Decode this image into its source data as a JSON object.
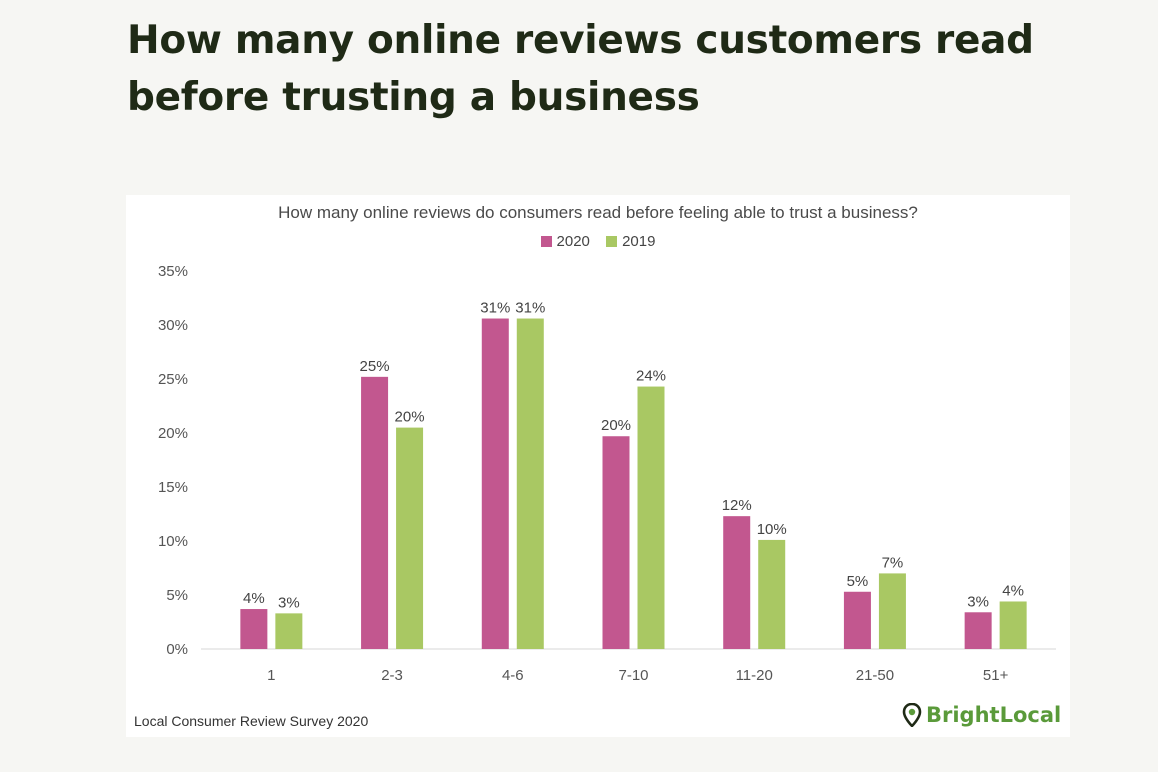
{
  "headline": "How many online reviews customers read before trusting a business",
  "brand": {
    "name": "BrightLocal",
    "icon": "map-pin-icon",
    "color": "#5a9a3a",
    "pin_color": "#1f2a16"
  },
  "source": "Local Consumer Review Survey 2020",
  "colors": {
    "2020": "#c2578f",
    "2019": "#a9c863"
  },
  "chart_data": {
    "type": "bar",
    "title": "How many online reviews do consumers read before feeling able to trust a business?",
    "categories": [
      "1",
      "2-3",
      "4-6",
      "7-10",
      "11-20",
      "21-50",
      "51+"
    ],
    "series": [
      {
        "name": "2020",
        "values": [
          3.7,
          25.2,
          30.6,
          19.7,
          12.3,
          5.3,
          3.4
        ],
        "labels": [
          "4%",
          "25%",
          "31%",
          "20%",
          "12%",
          "5%",
          "3%"
        ]
      },
      {
        "name": "2019",
        "values": [
          3.3,
          20.5,
          30.6,
          24.3,
          10.1,
          7.0,
          4.4
        ],
        "labels": [
          "3%",
          "20%",
          "31%",
          "24%",
          "10%",
          "7%",
          "4%"
        ]
      }
    ],
    "ylim": [
      0,
      35
    ],
    "yticks": [
      "0%",
      "5%",
      "10%",
      "15%",
      "20%",
      "25%",
      "30%",
      "35%"
    ],
    "xlabel": "",
    "ylabel": "",
    "legend": "top-center",
    "grid": false
  }
}
